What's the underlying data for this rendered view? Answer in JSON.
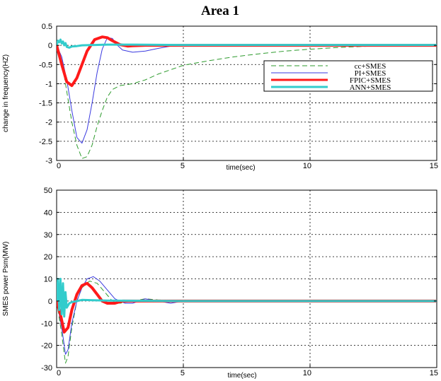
{
  "figure_title": "Area 1",
  "colors": {
    "cc": "#2e9b2e",
    "pi": "#3a3ae0",
    "fpic": "#ff1a1a",
    "ann": "#33cccc",
    "grid": "#000000"
  },
  "chart_data": [
    {
      "type": "line",
      "title": "",
      "xlabel": "time(sec)",
      "ylabel": "change in frequency(HZ)",
      "xlim": [
        0,
        15
      ],
      "ylim": [
        -3,
        0.5
      ],
      "xticks": [
        0,
        5,
        10,
        15
      ],
      "xtick_labels": [
        "0",
        "5",
        "10",
        "15"
      ],
      "yticks": [
        0.5,
        0,
        -0.5,
        -1,
        -1.5,
        -2,
        -2.5,
        -3
      ],
      "ytick_labels": [
        "0.5",
        "0",
        "-0.5",
        "-1",
        "-1.5",
        "-2",
        "-2.5",
        "-3"
      ],
      "grid": true,
      "legend_position": "upper-right",
      "series": [
        {
          "name": "cc+SMES",
          "style": "dashed",
          "x": [
            0,
            0.2,
            0.4,
            0.6,
            0.8,
            1.0,
            1.2,
            1.4,
            1.6,
            1.8,
            2.0,
            2.2,
            2.5,
            3.0,
            3.5,
            4.0,
            5.0,
            6.0,
            7.0,
            8.0,
            9.0,
            10.0,
            11.0,
            12.0,
            13.0,
            14.0,
            15.0
          ],
          "y": [
            0,
            -0.4,
            -1.2,
            -2.0,
            -2.6,
            -2.95,
            -2.9,
            -2.6,
            -2.1,
            -1.7,
            -1.35,
            -1.15,
            -1.05,
            -1.0,
            -0.9,
            -0.75,
            -0.52,
            -0.4,
            -0.3,
            -0.22,
            -0.15,
            -0.1,
            -0.06,
            -0.03,
            -0.01,
            0.01,
            0.02
          ]
        },
        {
          "name": "PI+SMES",
          "style": "solid",
          "x": [
            0,
            0.2,
            0.4,
            0.6,
            0.8,
            1.0,
            1.2,
            1.4,
            1.6,
            1.8,
            2.0,
            2.2,
            2.4,
            2.6,
            3.0,
            3.5,
            4.0,
            4.5,
            5.0,
            6.0,
            8.0,
            10.0,
            12.0,
            15.0
          ],
          "y": [
            0,
            -0.3,
            -0.9,
            -1.7,
            -2.4,
            -2.55,
            -2.2,
            -1.5,
            -0.7,
            -0.1,
            0.2,
            0.18,
            0.0,
            -0.12,
            -0.18,
            -0.15,
            -0.08,
            -0.02,
            0.0,
            0.0,
            0.0,
            0.0,
            0.0,
            0.0
          ]
        },
        {
          "name": "FPIC+SMES",
          "style": "solid-thick",
          "x": [
            0,
            0.2,
            0.4,
            0.6,
            0.8,
            1.0,
            1.2,
            1.5,
            1.8,
            2.0,
            2.2,
            2.5,
            2.8,
            3.0,
            3.5,
            4.0,
            5.0,
            8.0,
            12.0,
            15.0
          ],
          "y": [
            0,
            -0.5,
            -0.95,
            -1.05,
            -0.85,
            -0.5,
            -0.15,
            0.15,
            0.22,
            0.2,
            0.12,
            0.02,
            -0.02,
            -0.01,
            0.0,
            0.0,
            0.0,
            0.0,
            0.0,
            0.0
          ]
        },
        {
          "name": "ANN+SMES",
          "style": "solid-thick",
          "x": [
            0,
            0.05,
            0.1,
            0.15,
            0.2,
            0.25,
            0.3,
            0.35,
            0.4,
            0.5,
            0.6,
            0.8,
            1.0,
            1.5,
            2.0,
            3.0,
            5.0,
            10.0,
            15.0
          ],
          "y": [
            0,
            0.12,
            0.08,
            0.15,
            0.05,
            0.1,
            0.0,
            0.06,
            -0.04,
            -0.06,
            -0.03,
            -0.02,
            0.0,
            0.01,
            0.02,
            0.02,
            0.01,
            0.01,
            0.01
          ]
        }
      ]
    },
    {
      "type": "line",
      "title": "",
      "xlabel": "time(sec)",
      "ylabel": "SMES power Psm(MW)",
      "xlim": [
        0,
        15
      ],
      "ylim": [
        -30,
        50
      ],
      "xticks": [
        0,
        5,
        10,
        15
      ],
      "xtick_labels": [
        "0",
        "5",
        "10",
        "15"
      ],
      "yticks": [
        50,
        40,
        30,
        20,
        10,
        0,
        -10,
        -20,
        -30
      ],
      "ytick_labels": [
        "50",
        "40",
        "30",
        "20",
        "10",
        "0",
        "-10",
        "-20",
        "-30"
      ],
      "grid": true,
      "legend_position": "none",
      "series": [
        {
          "name": "cc+SMES",
          "style": "dashed",
          "x": [
            0,
            0.2,
            0.35,
            0.45,
            0.6,
            0.8,
            1.0,
            1.3,
            1.6,
            1.9,
            2.2,
            2.5,
            3.0,
            3.5,
            4.0,
            5.0,
            7.0,
            10.0,
            15.0
          ],
          "y": [
            0,
            -15,
            -28,
            -25,
            -12,
            0,
            6,
            9,
            8,
            4,
            0,
            -1,
            0,
            1,
            0.5,
            0.2,
            0,
            0,
            0
          ]
        },
        {
          "name": "PI+SMES",
          "style": "solid",
          "x": [
            0,
            0.2,
            0.35,
            0.45,
            0.6,
            0.8,
            1.0,
            1.2,
            1.45,
            1.7,
            2.0,
            2.3,
            2.7,
            3.0,
            3.5,
            4.0,
            4.5,
            5.0,
            6.0,
            8.0,
            10.0,
            15.0
          ],
          "y": [
            0,
            -12,
            -24,
            -22,
            -10,
            0,
            6,
            10,
            11,
            9,
            5,
            1,
            -1,
            -1,
            1,
            0,
            -1,
            0,
            0,
            0,
            0,
            0
          ]
        },
        {
          "name": "FPIC+SMES",
          "style": "solid-thick",
          "x": [
            0,
            0.15,
            0.3,
            0.45,
            0.6,
            0.8,
            1.0,
            1.2,
            1.4,
            1.6,
            1.8,
            2.0,
            2.3,
            2.6,
            3.0,
            4.0,
            6.0,
            10.0,
            15.0
          ],
          "y": [
            0,
            -6,
            -14,
            -12,
            -4,
            3,
            7,
            8,
            6,
            3,
            0,
            -1,
            -1,
            0,
            0,
            0,
            0,
            0,
            0
          ]
        },
        {
          "name": "ANN+SMES",
          "style": "solid-thick",
          "x": [
            0,
            0.05,
            0.1,
            0.15,
            0.2,
            0.25,
            0.3,
            0.35,
            0.4,
            0.5,
            0.6,
            0.8,
            1.0,
            2.0,
            5.0,
            10.0,
            15.0
          ],
          "y": [
            0,
            10,
            -4,
            10,
            -6,
            8,
            -7,
            4,
            -3,
            -1,
            -0.5,
            0,
            0.5,
            0.2,
            0,
            0,
            0
          ]
        }
      ]
    }
  ]
}
